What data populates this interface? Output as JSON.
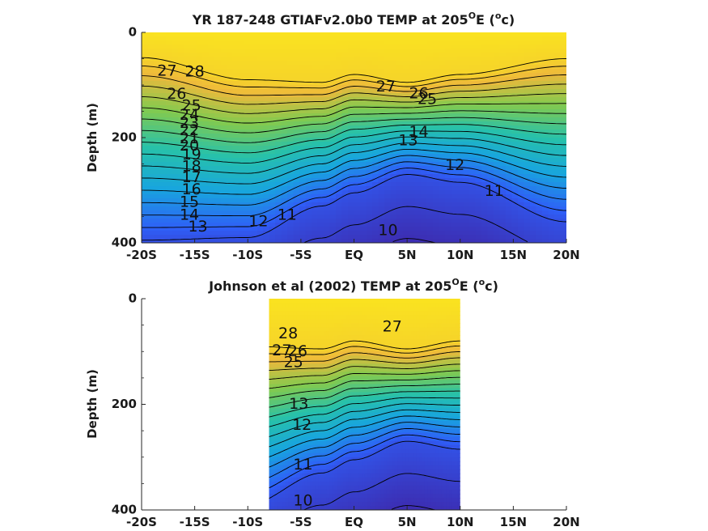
{
  "chart_data": [
    {
      "type": "contour",
      "title_prefix": "YR 187-248 GTIAFv2.0b0 TEMP at 205",
      "title_sup1": "O",
      "title_mid": "E (",
      "title_sup2": "o",
      "title_suffix": "c)",
      "ylabel": "Depth (m)",
      "xlabel": "",
      "x_ticks": [
        "-20S",
        "-15S",
        "-10S",
        "-5S",
        "EQ",
        "5N",
        "10N",
        "15N",
        "20N"
      ],
      "y_ticks": [
        "0",
        "200",
        "400"
      ],
      "xlim": [
        -20,
        20
      ],
      "ylim": [
        0,
        400
      ],
      "y_reversed": true,
      "colormap": [
        "#3e26a8",
        "#2f5ef7",
        "#18a5de",
        "#27c1aa",
        "#82ca4f",
        "#eeb93b",
        "#fcea1b"
      ],
      "contour_levels": [
        10,
        11,
        12,
        13,
        14,
        15,
        16,
        17,
        18,
        19,
        20,
        21,
        22,
        23,
        24,
        25,
        26,
        27,
        28
      ],
      "contour_labels": [
        {
          "value": "28",
          "lat": -15,
          "depth": 75
        },
        {
          "value": "27",
          "lat": -17.6,
          "depth": 74
        },
        {
          "value": "26",
          "lat": -16.7,
          "depth": 118
        },
        {
          "value": "25",
          "lat": -15.3,
          "depth": 140
        },
        {
          "value": "24",
          "lat": -15.5,
          "depth": 158
        },
        {
          "value": "23",
          "lat": -15.5,
          "depth": 173
        },
        {
          "value": "22",
          "lat": -15.5,
          "depth": 187
        },
        {
          "value": "21",
          "lat": -15.5,
          "depth": 202
        },
        {
          "value": "20",
          "lat": -15.5,
          "depth": 216
        },
        {
          "value": "19",
          "lat": -15.3,
          "depth": 233
        },
        {
          "value": "18",
          "lat": -15.3,
          "depth": 255
        },
        {
          "value": "17",
          "lat": -15.3,
          "depth": 276
        },
        {
          "value": "16",
          "lat": -15.3,
          "depth": 299
        },
        {
          "value": "15",
          "lat": -15.5,
          "depth": 323
        },
        {
          "value": "14",
          "lat": -15.5,
          "depth": 348
        },
        {
          "value": "13",
          "lat": -14.7,
          "depth": 370
        },
        {
          "value": "12",
          "lat": -9,
          "depth": 360
        },
        {
          "value": "11",
          "lat": -6.3,
          "depth": 348
        },
        {
          "value": "10",
          "lat": 3.2,
          "depth": 377
        },
        {
          "value": "27",
          "lat": 3,
          "depth": 104
        },
        {
          "value": "26",
          "lat": 6.1,
          "depth": 117
        },
        {
          "value": "25",
          "lat": 6.9,
          "depth": 128
        },
        {
          "value": "14",
          "lat": 6.1,
          "depth": 190
        },
        {
          "value": "13",
          "lat": 5.1,
          "depth": 206
        },
        {
          "value": "12",
          "lat": 9.5,
          "depth": 253
        },
        {
          "value": "11",
          "lat": 13.2,
          "depth": 302
        }
      ],
      "thermocline_depth_max_m": [
        {
          "lat": -20,
          "t28": 48,
          "t12": 395
        },
        {
          "lat": -10,
          "t28": 90,
          "t12": 390
        },
        {
          "lat": -3,
          "t28": 95,
          "t12": 330
        },
        {
          "lat": 0,
          "t28": 80,
          "t12": 305
        },
        {
          "lat": 5,
          "t28": 95,
          "t12": 270
        },
        {
          "lat": 10,
          "t28": 80,
          "t12": 285
        },
        {
          "lat": 20,
          "t28": 50,
          "t12": 360
        }
      ]
    },
    {
      "type": "contour",
      "title_prefix": "Johnson et al (2002) TEMP at 205",
      "title_sup1": "O",
      "title_mid": "E (",
      "title_sup2": "o",
      "title_suffix": "c)",
      "ylabel": "Depth (m)",
      "xlabel": "",
      "x_ticks": [
        "-20S",
        "-15S",
        "-10S",
        "-5S",
        "EQ",
        "5N",
        "10N",
        "15N",
        "20N"
      ],
      "y_ticks": [
        "0",
        "200",
        "400"
      ],
      "xlim": [
        -20,
        20
      ],
      "ylim": [
        0,
        400
      ],
      "y_reversed": true,
      "data_lat_range": [
        -8,
        10
      ],
      "colormap": [
        "#3e26a8",
        "#2f5ef7",
        "#18a5de",
        "#27c1aa",
        "#82ca4f",
        "#eeb93b",
        "#fcea1b"
      ],
      "contour_levels": [
        10,
        11,
        12,
        13,
        14,
        15,
        16,
        17,
        18,
        19,
        20,
        21,
        22,
        23,
        24,
        25,
        26,
        27,
        28
      ],
      "contour_labels": [
        {
          "value": "28",
          "lat": -6.2,
          "depth": 67
        },
        {
          "value": "27",
          "lat": -6.8,
          "depth": 99
        },
        {
          "value": "26",
          "lat": -5.3,
          "depth": 100
        },
        {
          "value": "25",
          "lat": -5.7,
          "depth": 121
        },
        {
          "value": "13",
          "lat": -5.2,
          "depth": 200
        },
        {
          "value": "12",
          "lat": -4.9,
          "depth": 240
        },
        {
          "value": "11",
          "lat": -4.8,
          "depth": 315
        },
        {
          "value": "10",
          "lat": -4.8,
          "depth": 383
        },
        {
          "value": "27",
          "lat": 3.6,
          "depth": 54
        }
      ]
    }
  ]
}
